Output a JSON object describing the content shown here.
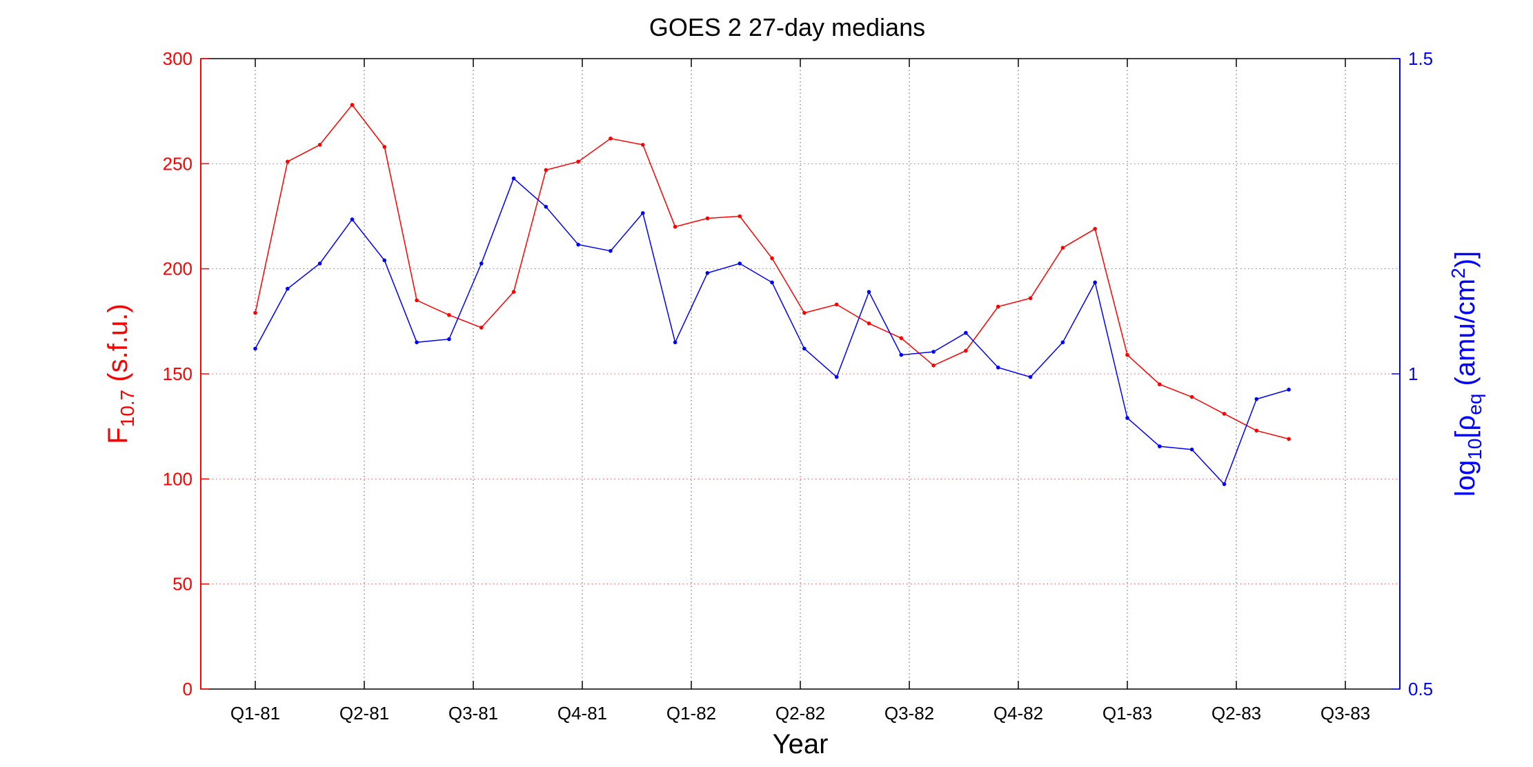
{
  "chart_data": {
    "type": "line",
    "title": "GOES 2 27-day medians",
    "xlabel": "Year",
    "ylabel_left": {
      "base": "F",
      "sub": "10.7",
      "rest": " (s.f.u.)"
    },
    "ylabel_right": {
      "p1": "log",
      "s1": "10",
      "p2": "[ρ",
      "s2": "eq",
      "p3": " (amu/cm",
      "sup": "2",
      "p4": ")]"
    },
    "x_ticks": [
      {
        "label": "Q1-81",
        "pos": 0
      },
      {
        "label": "Q2-81",
        "pos": 1
      },
      {
        "label": "Q3-81",
        "pos": 2
      },
      {
        "label": "Q4-81",
        "pos": 3
      },
      {
        "label": "Q1-82",
        "pos": 4
      },
      {
        "label": "Q2-82",
        "pos": 5
      },
      {
        "label": "Q3-82",
        "pos": 6
      },
      {
        "label": "Q4-82",
        "pos": 7
      },
      {
        "label": "Q1-83",
        "pos": 8
      },
      {
        "label": "Q2-83",
        "pos": 9
      },
      {
        "label": "Q3-83",
        "pos": 10
      }
    ],
    "xlim": [
      -0.5,
      10.5
    ],
    "left_axis": {
      "ylim": [
        0,
        300
      ],
      "ticks": [
        "0",
        "50",
        "100",
        "150",
        "200",
        "250",
        "300"
      ],
      "color": "#ff0000"
    },
    "right_axis": {
      "ylim": [
        0.5,
        1.5
      ],
      "ticks": [
        "0.5",
        "1",
        "1.5"
      ],
      "color": "#0000ff"
    },
    "grid": true,
    "x": [
      0,
      0.2963,
      0.5926,
      0.8889,
      1.1852,
      1.4815,
      1.7778,
      2.0741,
      2.3704,
      2.6667,
      2.963,
      3.2593,
      3.5556,
      3.8519,
      4.1481,
      4.4444,
      4.7407,
      5.037,
      5.3333,
      5.6296,
      5.9259,
      6.2222,
      6.5185,
      6.8148,
      7.1111,
      7.4074,
      7.7037,
      8.0,
      8.2963,
      8.5926,
      8.8889,
      9.1852,
      9.4815
    ],
    "series": [
      {
        "axis": "left",
        "color": "#ff0000",
        "values": [
          179,
          251,
          259,
          278,
          258,
          185,
          178,
          172,
          189,
          247,
          251,
          262,
          259,
          220,
          224,
          225,
          205,
          179,
          183,
          174,
          167,
          154,
          161,
          182,
          186,
          210,
          219,
          159,
          145,
          139,
          131,
          123,
          119
        ]
      },
      {
        "axis": "right",
        "color": "#0000ff",
        "values": [
          1.04,
          1.135,
          1.175,
          1.245,
          1.18,
          1.05,
          1.055,
          1.175,
          1.31,
          1.265,
          1.205,
          1.195,
          1.255,
          1.05,
          1.16,
          1.175,
          1.145,
          1.04,
          0.995,
          1.13,
          1.03,
          1.035,
          1.065,
          1.01,
          0.995,
          1.05,
          1.145,
          0.93,
          0.885,
          0.88,
          0.825,
          0.96,
          0.975
        ]
      }
    ]
  }
}
